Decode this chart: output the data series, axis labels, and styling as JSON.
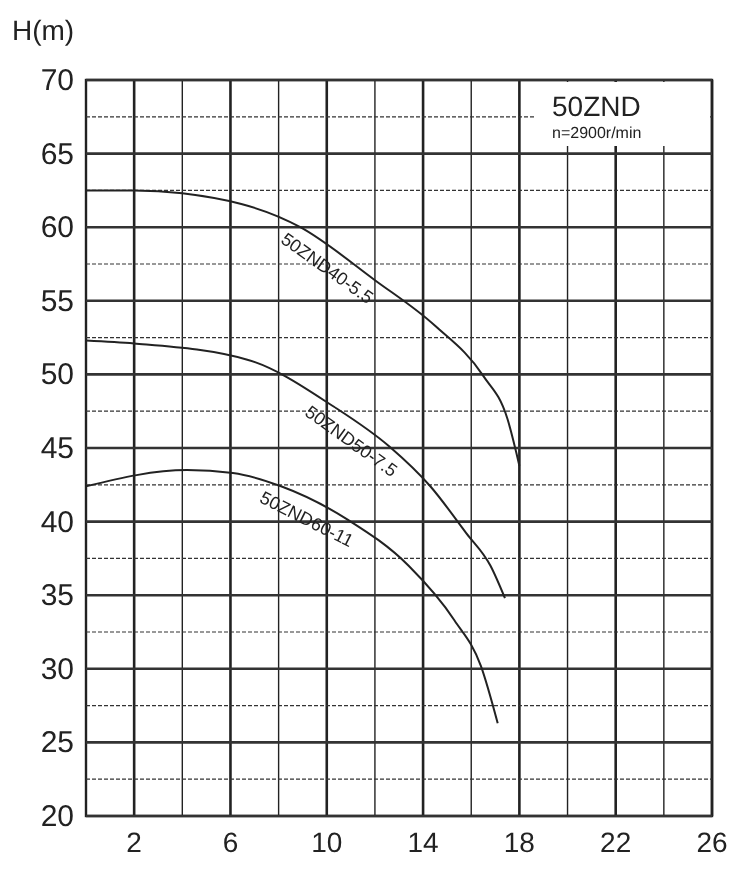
{
  "chart_data": {
    "type": "line",
    "title": "50ZND",
    "subtitle": "n=2900r/min",
    "ylabel": "H(m)",
    "xlim": [
      0,
      26
    ],
    "ylim": [
      20,
      70
    ],
    "xticks": [
      {
        "value": 0,
        "label": null
      },
      2,
      {
        "value": 4,
        "label": null
      },
      6,
      {
        "value": 8,
        "label": null
      },
      10,
      {
        "value": 12,
        "label": null
      },
      14,
      {
        "value": 16,
        "label": null
      },
      18,
      {
        "value": 20,
        "label": null
      },
      22,
      {
        "value": 24,
        "label": null
      },
      26
    ],
    "yticks": [
      20,
      {
        "value": 22.5,
        "label": null
      },
      25,
      {
        "value": 27.5,
        "label": null
      },
      30,
      {
        "value": 32.5,
        "label": null
      },
      35,
      {
        "value": 37.5,
        "label": null
      },
      40,
      {
        "value": 42.5,
        "label": null
      },
      45,
      {
        "value": 47.5,
        "label": null
      },
      50,
      {
        "value": 52.5,
        "label": null
      },
      55,
      {
        "value": 57.5,
        "label": null
      },
      60,
      {
        "value": 62.5,
        "label": null
      },
      65,
      {
        "value": 67.5,
        "label": null
      },
      70
    ],
    "grid": true,
    "marker": "none",
    "line_style": "solid",
    "series": [
      {
        "name": "50ZND40-5.5",
        "color": "#222222",
        "x": [
          0,
          2,
          4,
          8.9,
          12,
          14.5,
          16.5,
          17.5,
          18
        ],
        "values": [
          62.5,
          62.5,
          62.3,
          60.0,
          56.4,
          53.3,
          49.9,
          47,
          43.8
        ]
      },
      {
        "name": "50ZND50-7.5",
        "color": "#222222",
        "x": [
          0,
          2,
          6.7,
          10.3,
          12.6,
          14.3,
          15.8,
          16.8,
          17.4
        ],
        "values": [
          52.3,
          52.1,
          51.0,
          47.8,
          45.1,
          42.4,
          39.2,
          37,
          34.8
        ]
      },
      {
        "name": "50ZND60-11",
        "color": "#222222",
        "x": [
          0,
          4.2,
          6.1,
          8.1,
          10.9,
          13.4,
          15.3,
          16.4,
          17.1
        ],
        "values": [
          42.4,
          43.5,
          43.3,
          42.4,
          40.1,
          37.0,
          33.3,
          30.2,
          26.3
        ]
      }
    ]
  }
}
